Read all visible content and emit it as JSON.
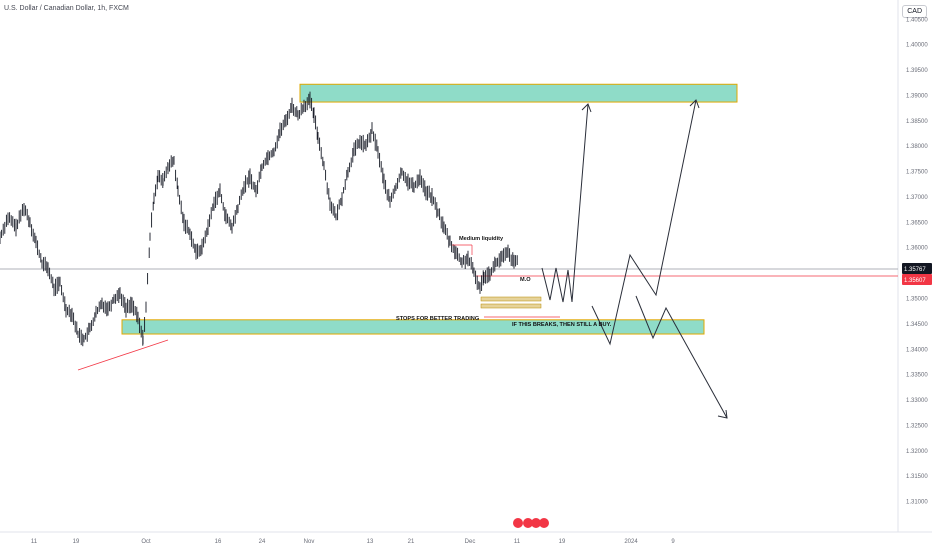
{
  "header": {
    "symbol": "U.S. Dollar / Canadian Dollar, 1h, FXCM",
    "currency": "CAD"
  },
  "chart_data": {
    "type": "candlestick",
    "title": "U.S. Dollar / Canadian Dollar, 1h, FXCM",
    "ylim": [
      1.304,
      1.4088
    ],
    "y_ticks": [
      "1.40500",
      "1.40000",
      "1.39500",
      "1.39000",
      "1.38500",
      "1.38000",
      "1.37500",
      "1.37000",
      "1.36500",
      "1.36000",
      "1.35500",
      "1.35000",
      "1.34500",
      "1.34000",
      "1.33500",
      "1.33000",
      "1.32500",
      "1.32000",
      "1.31500",
      "1.31000"
    ],
    "x_ticks": [
      "11",
      "19",
      "Oct",
      "16",
      "24",
      "Nov",
      "13",
      "21",
      "Dec",
      "11",
      "19",
      "2024",
      "9"
    ],
    "current_price": "1.35767",
    "second_price": "1.35607",
    "second_price_color": "#f23645",
    "series": [
      {
        "values": [
          [
            0,
            1.362
          ],
          [
            8,
            1.366
          ],
          [
            16,
            1.364
          ],
          [
            24,
            1.368
          ],
          [
            30,
            1.365
          ],
          [
            36,
            1.361
          ],
          [
            42,
            1.357
          ],
          [
            48,
            1.356
          ],
          [
            54,
            1.352
          ],
          [
            60,
            1.353
          ],
          [
            66,
            1.348
          ],
          [
            72,
            1.347
          ],
          [
            78,
            1.343
          ],
          [
            84,
            1.342
          ],
          [
            90,
            1.344
          ],
          [
            96,
            1.347
          ],
          [
            102,
            1.349
          ],
          [
            108,
            1.348
          ],
          [
            114,
            1.35
          ],
          [
            120,
            1.351
          ],
          [
            126,
            1.348
          ],
          [
            132,
            1.349
          ],
          [
            138,
            1.346
          ],
          [
            143,
            1.342
          ],
          [
            146,
            1.348
          ],
          [
            150,
            1.362
          ],
          [
            154,
            1.37
          ],
          [
            158,
            1.374
          ],
          [
            163,
            1.373
          ],
          [
            168,
            1.376
          ],
          [
            174,
            1.377
          ],
          [
            178,
            1.371
          ],
          [
            184,
            1.365
          ],
          [
            190,
            1.363
          ],
          [
            196,
            1.359
          ],
          [
            202,
            1.36
          ],
          [
            208,
            1.364
          ],
          [
            214,
            1.369
          ],
          [
            220,
            1.371
          ],
          [
            226,
            1.366
          ],
          [
            232,
            1.364
          ],
          [
            238,
            1.368
          ],
          [
            244,
            1.372
          ],
          [
            250,
            1.374
          ],
          [
            256,
            1.371
          ],
          [
            262,
            1.376
          ],
          [
            268,
            1.378
          ],
          [
            274,
            1.379
          ],
          [
            280,
            1.383
          ],
          [
            286,
            1.385
          ],
          [
            292,
            1.388
          ],
          [
            298,
            1.386
          ],
          [
            304,
            1.388
          ],
          [
            310,
            1.389
          ],
          [
            314,
            1.386
          ],
          [
            318,
            1.382
          ],
          [
            324,
            1.376
          ],
          [
            330,
            1.369
          ],
          [
            336,
            1.366
          ],
          [
            342,
            1.37
          ],
          [
            348,
            1.375
          ],
          [
            354,
            1.379
          ],
          [
            360,
            1.381
          ],
          [
            366,
            1.38
          ],
          [
            372,
            1.383
          ],
          [
            378,
            1.379
          ],
          [
            384,
            1.373
          ],
          [
            390,
            1.369
          ],
          [
            396,
            1.372
          ],
          [
            402,
            1.375
          ],
          [
            408,
            1.373
          ],
          [
            414,
            1.372
          ],
          [
            420,
            1.374
          ],
          [
            426,
            1.371
          ],
          [
            432,
            1.37
          ],
          [
            438,
            1.367
          ],
          [
            444,
            1.364
          ],
          [
            450,
            1.361
          ],
          [
            456,
            1.359
          ],
          [
            462,
            1.357
          ],
          [
            468,
            1.358
          ],
          [
            474,
            1.355
          ],
          [
            480,
            1.352
          ],
          [
            484,
            1.3545
          ],
          [
            490,
            1.355
          ],
          [
            496,
            1.357
          ],
          [
            502,
            1.358
          ],
          [
            508,
            1.359
          ],
          [
            514,
            1.357
          ],
          [
            518,
            1.3575
          ]
        ]
      }
    ],
    "zones": [
      {
        "from": 1.3922,
        "to": 1.3887,
        "color": "#8fdcc8",
        "border": "#e0a800"
      },
      {
        "from": 1.3458,
        "to": 1.343,
        "color": "#8fdcc8",
        "border": "#e0a800"
      }
    ],
    "annotations": [
      "Medium liquidity",
      "M.O",
      "STOPS FOR BETTER TRADING",
      "IF THIS BREAKS, THEN STILL A BUY."
    ]
  }
}
